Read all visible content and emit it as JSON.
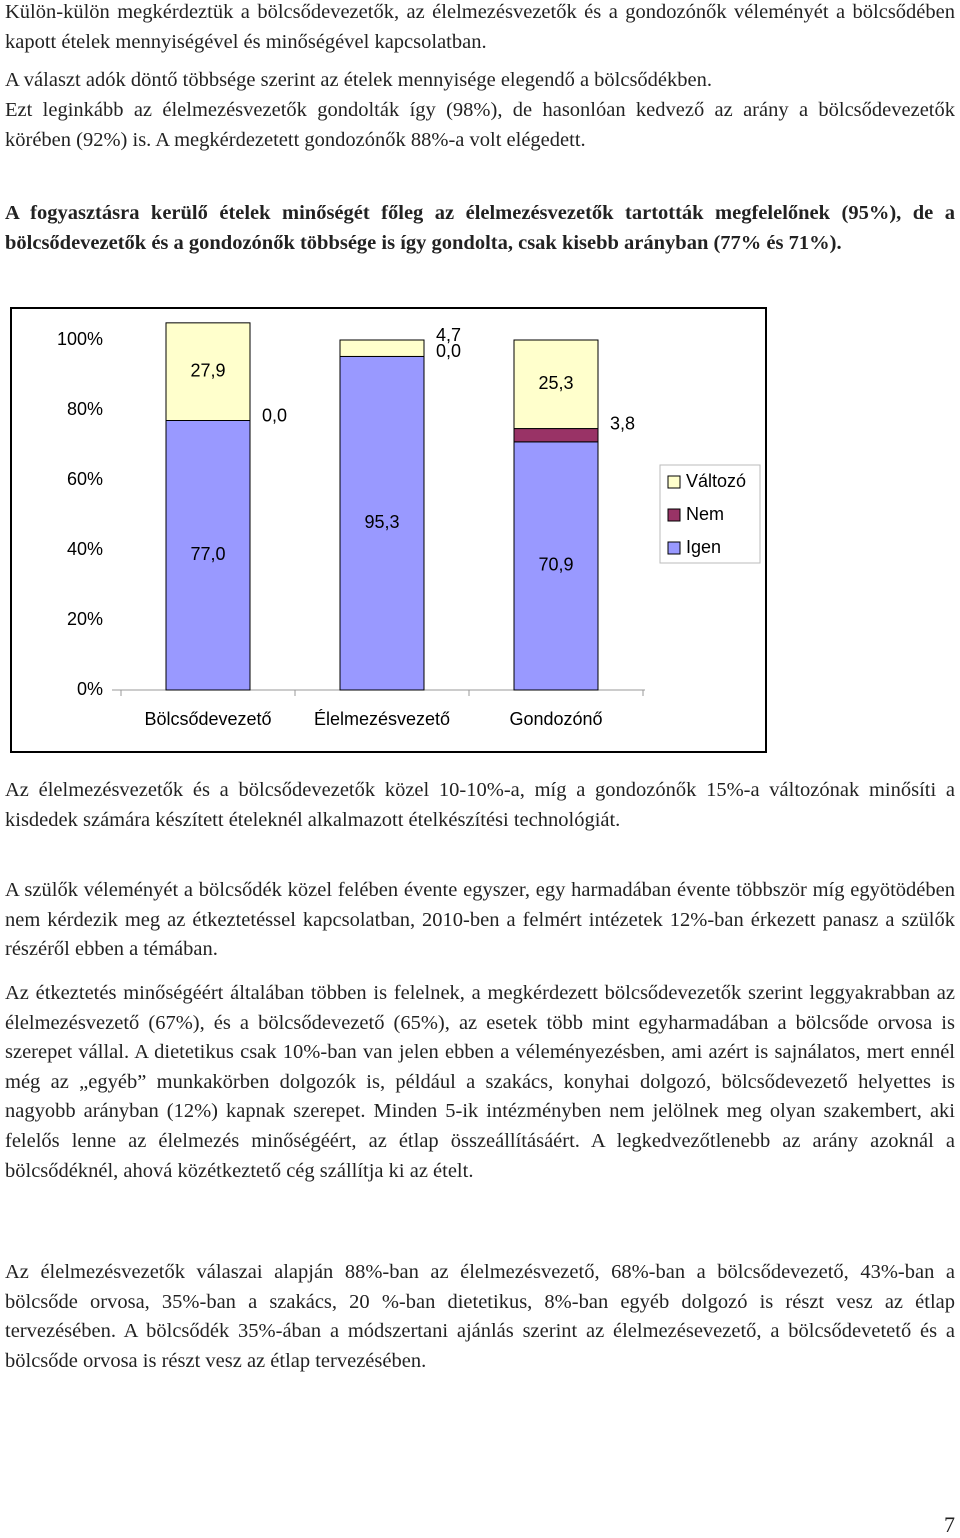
{
  "paragraphs": [
    "Külön-külön megkérdeztük a bölcsődevezetők, az élelmezésvezetők és a gondozónők véleményét a bölcsődében kapott ételek mennyiségével és minőségével kapcsolatban.",
    "A választ adók döntő többsége szerint az ételek mennyisége elegendő a bölcsődékben.",
    "Ezt leginkább az élelmezésvezetők gondolták így (98%), de hasonlóan kedvező az arány a bölcsődevezetők körében (92%) is. A megkérdezetett gondozónők 88%-a volt elégedett.",
    "A fogyasztásra kerülő ételek minőségét főleg az élelmezésvezetők tartották megfelelőnek (95%), de a bölcsődevezetők és a gondozónők többsége is így gondolta, csak kisebb arányban (77% és 71%).",
    "Az élelmezésvezetők és a bölcsődevezetők közel 10-10%-a, míg a gondozónők 15%-a változónak minősíti a kisdedek számára készített ételeknél alkalmazott ételkészítési technológiát.",
    "A szülők véleményét a bölcsődék közel felében évente egyszer, egy harmadában évente többször míg egyötödében nem kérdezik meg az étkeztetéssel kapcsolatban, 2010-ben a felmért intézetek 12%-ban érkezett panasz a szülők részéről ebben a témában.",
    "Az étkeztetés minőségéért általában többen is felelnek, a megkérdezett bölcsődevezetők szerint leggyakrabban az élelmezésvezető (67%), és a bölcsődevezető (65%), az esetek több mint egyharmadában a bölcsőde orvosa is szerepet vállal. A dietetikus csak 10%-ban van jelen ebben a véleményezésben, ami azért is sajnálatos, mert ennél még az „egyéb” munkakörben dolgozók is, például a szakács, konyhai dolgozó, bölcsődevezető helyettes is nagyobb arányban (12%) kapnak szerepet. Minden 5-ik intézményben nem jelölnek meg olyan szakembert, aki felelős lenne az élelmezés minőségéért, az étlap összeállításáért. A legkedvezőtlenebb az arány azoknál a bölcsődéknél, ahová közétkeztető cég szállítja ki az ételt.",
    "Az élelmezésvezetők válaszai alapján 88%-ban az élelmezésvezető, 68%-ban a bölcsődevezető, 43%-ban a bölcsőde orvosa, 35%-ban a szakács, 20 %-ban dietetikus, 8%-ban egyéb dolgozó is részt vesz az étlap tervezésében. A bölcsődék 35%-ában a módszertani ajánlás szerint az élelmezésevezető, a bölcsődevetető és a bölcsőde orvosa is részt vesz az étlap tervezésében."
  ],
  "chart_data": {
    "type": "stacked_bar",
    "categories": [
      "Bölcsődevezető",
      "Élelmezésvezető",
      "Gondozónő"
    ],
    "series": [
      {
        "name": "Igen",
        "color": "#9999ff",
        "values": [
          77.0,
          95.3,
          70.9
        ],
        "value_labels": [
          "77,0",
          "95,3",
          "70,9"
        ]
      },
      {
        "name": "Nem",
        "color": "#993366",
        "values": [
          0.0,
          0.0,
          3.8
        ],
        "value_labels": [
          "0,0",
          "0,0",
          "3,8"
        ]
      },
      {
        "name": "Változó",
        "color": "#ffffcc",
        "values": [
          27.9,
          4.7,
          25.3
        ],
        "value_labels": [
          "27,9",
          "4,7",
          "25,3"
        ]
      }
    ],
    "ylim": [
      0,
      100
    ],
    "yticks": [
      {
        "value": 0,
        "label": "0%"
      },
      {
        "value": 20,
        "label": "20%"
      },
      {
        "value": 40,
        "label": "40%"
      },
      {
        "value": 60,
        "label": "60%"
      },
      {
        "value": 80,
        "label": "80%"
      },
      {
        "value": 100,
        "label": "100%"
      }
    ],
    "legend": "right"
  },
  "page_number": "7"
}
